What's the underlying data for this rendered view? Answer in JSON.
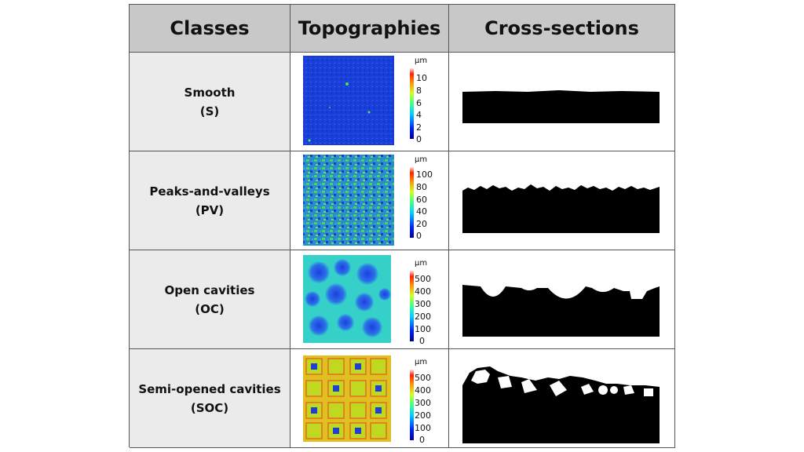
{
  "headers": {
    "classes": "Classes",
    "topographies": "Topographies",
    "cross_sections": "Cross-sections"
  },
  "rows": [
    {
      "name": "Smooth",
      "abbr": "(S)",
      "unit": "µm",
      "ticks": [
        "10",
        "8",
        "6",
        "4",
        "2",
        "0"
      ],
      "colormap": "jet",
      "icon": "smooth-topography-map"
    },
    {
      "name": "Peaks-and-valleys",
      "abbr": "(PV)",
      "unit": "µm",
      "ticks": [
        "100",
        "80",
        "60",
        "40",
        "20",
        "0"
      ],
      "colormap": "jet",
      "icon": "peaks-valleys-topography-map"
    },
    {
      "name": "Open cavities",
      "abbr": "(OC)",
      "unit": "µm",
      "ticks": [
        "500",
        "400",
        "300",
        "200",
        "100",
        "0"
      ],
      "colormap": "jet",
      "icon": "open-cavities-topography-map"
    },
    {
      "name": "Semi-opened cavities",
      "abbr": "(SOC)",
      "unit": "µm",
      "ticks": [
        "500",
        "400",
        "300",
        "200",
        "100",
        "0"
      ],
      "colormap": "jet",
      "icon": "semi-opened-cavities-topography-map"
    }
  ],
  "colors": {
    "header_bg": "#c8c8c8",
    "class_bg": "#ebebeb",
    "border": "#555555"
  }
}
